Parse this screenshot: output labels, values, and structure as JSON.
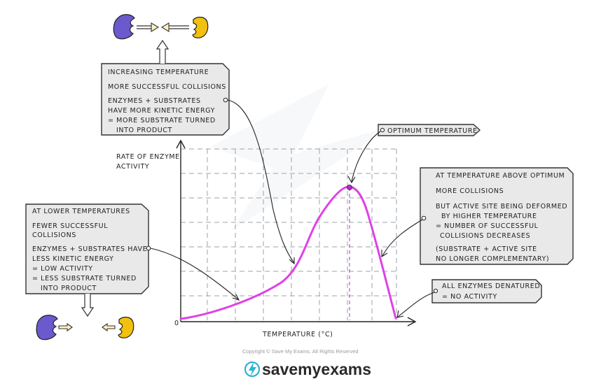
{
  "graph": {
    "y_label_line1": "RATE OF ENZYME",
    "y_label_line2": "ACTIVITY",
    "x_label": "TEMPERATURE (°C)",
    "origin": "0",
    "curve_color": "#e040e8",
    "optimum_marker_color": "#b030c8"
  },
  "callouts": {
    "increasing": {
      "title": "INCREASING  TEMPERATURE",
      "line1": "MORE  SUCCESSFUL  COLLISIONS",
      "line2": "ENZYMES  +  SUBSTRATES",
      "line3": "HAVE  MORE  KINETIC  ENERGY",
      "line4": "= MORE  SUBSTRATE  TURNED",
      "line5": "INTO  PRODUCT"
    },
    "lower": {
      "title": "AT  LOWER  TEMPERATURES",
      "line1": "FEWER  SUCCESSFUL",
      "line2": "COLLISIONS",
      "line3": "ENZYMES + SUBSTRATES  HAVE",
      "line4": "LESS  KINETIC  ENERGY",
      "line5": "= LOW  ACTIVITY",
      "line6": "= LESS  SUBSTRATE  TURNED",
      "line7": "INTO  PRODUCT"
    },
    "optimum": {
      "label": "OPTIMUM  TEMPERATURE"
    },
    "above": {
      "title": "AT  TEMPERATURE  ABOVE  OPTIMUM",
      "line1": "MORE  COLLISIONS",
      "line2": "BUT  ACTIVE  SITE  BEING  DEFORMED",
      "line3": "BY  HIGHER  TEMPERATURE",
      "line4": "= NUMBER  OF  SUCCESSFUL",
      "line5": "COLLISIONS   DECREASES",
      "line6": "(SUBSTRATE  +  ACTIVE  SITE",
      "line7": "NO  LONGER  COMPLEMENTARY)"
    },
    "denatured": {
      "line1": "ALL  ENZYMES  DENATURED",
      "line2": "= NO  ACTIVITY"
    }
  },
  "colors": {
    "enzyme": "#6a5acd",
    "substrate": "#f2c10f",
    "box_fill": "#e9e9e9"
  },
  "footer": {
    "copyright": "Copyright © Save My Exams. All Rights Reserved",
    "brand": "savemyexams"
  }
}
